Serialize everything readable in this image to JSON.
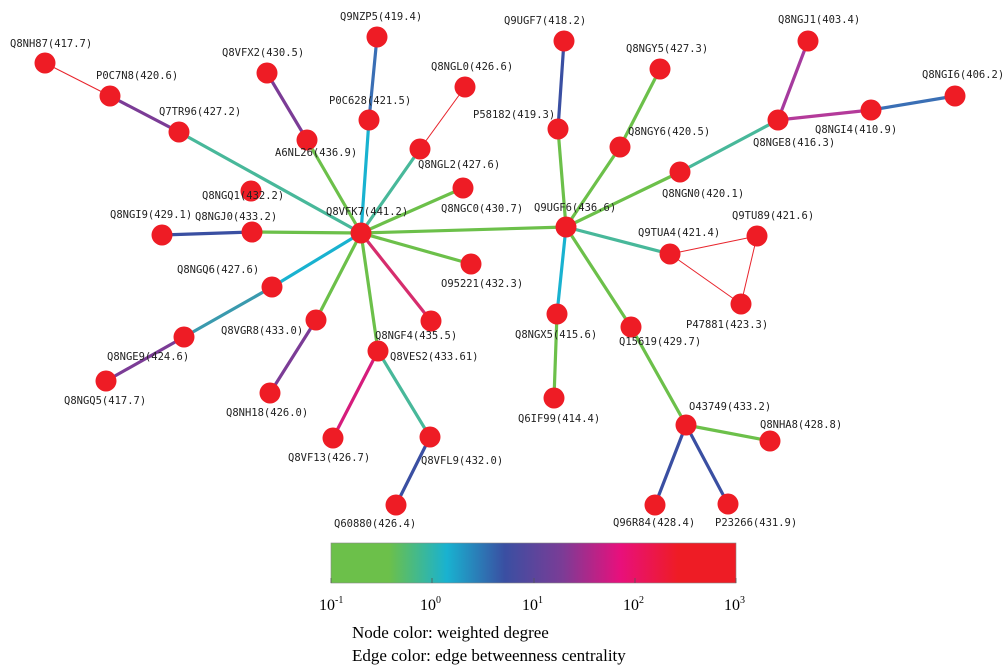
{
  "network": {
    "nodes": [
      {
        "id": "Q8VFK7",
        "label": "Q8VFK7(441.2)"
      },
      {
        "id": "Q9UGF6",
        "label": "Q9UGF6(436.6)"
      },
      {
        "id": "Q8NH87",
        "label": "Q8NH87(417.7)"
      },
      {
        "id": "P0C7N8",
        "label": "P0C7N8(420.6)"
      },
      {
        "id": "Q7TR96",
        "label": "Q7TR96(427.2)"
      },
      {
        "id": "Q8VFX2",
        "label": "Q8VFX2(430.5)"
      },
      {
        "id": "A6NL26",
        "label": "A6NL26(436.9)"
      },
      {
        "id": "Q9NZP5",
        "label": "Q9NZP5(419.4)"
      },
      {
        "id": "P0C628",
        "label": "P0C628(421.5)"
      },
      {
        "id": "Q8NGL0",
        "label": "Q8NGL0(426.6)"
      },
      {
        "id": "Q8NGL2",
        "label": "Q8NGL2(427.6)"
      },
      {
        "id": "Q8NGQ1",
        "label": "Q8NGQ1(432.2)"
      },
      {
        "id": "Q8NGC0",
        "label": "Q8NGC0(430.7)"
      },
      {
        "id": "Q8NGI9",
        "label": "Q8NGI9(429.1)"
      },
      {
        "id": "Q8NGJ0",
        "label": "Q8NGJ0(433.2)"
      },
      {
        "id": "O95221",
        "label": "O95221(432.3)"
      },
      {
        "id": "Q8NGQ6",
        "label": "Q8NGQ6(427.6)"
      },
      {
        "id": "Q8VGR8",
        "label": "Q8VGR8(433.0)"
      },
      {
        "id": "Q8NGF4",
        "label": "Q8NGF4(435.5)"
      },
      {
        "id": "Q8NGE9",
        "label": "Q8NGE9(424.6)"
      },
      {
        "id": "Q8VES2",
        "label": "Q8VES2(433.61)"
      },
      {
        "id": "Q8NGQ5",
        "label": "Q8NGQ5(417.7)"
      },
      {
        "id": "Q8NH18",
        "label": "Q8NH18(426.0)"
      },
      {
        "id": "Q8VF13",
        "label": "Q8VF13(426.7)"
      },
      {
        "id": "Q8VFL9",
        "label": "Q8VFL9(432.0)"
      },
      {
        "id": "Q60880",
        "label": "Q60880(426.4)"
      },
      {
        "id": "Q9UGF7",
        "label": "Q9UGF7(418.2)"
      },
      {
        "id": "P58182",
        "label": "P58182(419.3)"
      },
      {
        "id": "Q8NGY5",
        "label": "Q8NGY5(427.3)"
      },
      {
        "id": "Q8NGY6",
        "label": "Q8NGY6(420.5)"
      },
      {
        "id": "Q8NGJ1",
        "label": "Q8NGJ1(403.4)"
      },
      {
        "id": "Q8NGI6",
        "label": "Q8NGI6(406.2)"
      },
      {
        "id": "Q8NGI4",
        "label": "Q8NGI4(410.9)"
      },
      {
        "id": "Q8NGE8",
        "label": "Q8NGE8(416.3)"
      },
      {
        "id": "Q8NGN0",
        "label": "Q8NGN0(420.1)"
      },
      {
        "id": "Q9TUA4",
        "label": "Q9TUA4(421.4)"
      },
      {
        "id": "Q9TU89",
        "label": "Q9TU89(421.6)"
      },
      {
        "id": "P47881",
        "label": "P47881(423.3)"
      },
      {
        "id": "Q8NGX5",
        "label": "Q8NGX5(415.6)"
      },
      {
        "id": "Q15619",
        "label": "Q15619(429.7)"
      },
      {
        "id": "Q6IF99",
        "label": "Q6IF99(414.4)"
      },
      {
        "id": "O43749",
        "label": "O43749(433.2)"
      },
      {
        "id": "Q8NHA8",
        "label": "Q8NHA8(428.8)"
      },
      {
        "id": "Q96R84",
        "label": "Q96R84(428.4)"
      },
      {
        "id": "P23266",
        "label": "P23266(431.9)"
      }
    ],
    "node_color": "#ee1c25",
    "edges": [
      {
        "source": "Q8VFK7",
        "target": "Q9UGF6",
        "color": "#6cc04a"
      },
      {
        "source": "Q8NH87",
        "target": "P0C7N8",
        "color": "#e8242c"
      },
      {
        "source": "P0C7N8",
        "target": "Q7TR96",
        "color": "#7b3c96"
      },
      {
        "source": "Q7TR96",
        "target": "Q8VFK7",
        "color": "#48b89a"
      },
      {
        "source": "Q8VFX2",
        "target": "A6NL26",
        "color": "#7b3c96"
      },
      {
        "source": "A6NL26",
        "target": "Q8VFK7",
        "color": "#6cc04a"
      },
      {
        "source": "Q9NZP5",
        "target": "P0C628",
        "color": "#3a6fb5"
      },
      {
        "source": "P0C628",
        "target": "Q8VFK7",
        "color": "#19b2d0"
      },
      {
        "source": "Q8NGL0",
        "target": "Q8NGL2",
        "color": "#e8242c"
      },
      {
        "source": "Q8NGL2",
        "target": "Q8VFK7",
        "color": "#48b89a"
      },
      {
        "source": "Q8NGC0",
        "target": "Q8VFK7",
        "color": "#6cc04a"
      },
      {
        "source": "Q8NGI9",
        "target": "Q8NGJ0",
        "color": "#3a4fa2"
      },
      {
        "source": "Q8NGJ0",
        "target": "Q8VFK7",
        "color": "#6cc04a"
      },
      {
        "source": "O95221",
        "target": "Q8VFK7",
        "color": "#6cc04a"
      },
      {
        "source": "Q8NGQ6",
        "target": "Q8VFK7",
        "color": "#19b2d0"
      },
      {
        "source": "Q8NGE9",
        "target": "Q8NGQ6",
        "color": "#3a9aae"
      },
      {
        "source": "Q8NGQ5",
        "target": "Q8NGE9",
        "color": "#7b3c96"
      },
      {
        "source": "Q8VGR8",
        "target": "Q8VFK7",
        "color": "#6cc04a"
      },
      {
        "source": "Q8NH18",
        "target": "Q8VGR8",
        "color": "#7b3c96"
      },
      {
        "source": "Q8NGF4",
        "target": "Q8VFK7",
        "color": "#d62d6d"
      },
      {
        "source": "Q8VES2",
        "target": "Q8VFK7",
        "color": "#6cc04a"
      },
      {
        "source": "Q8VF13",
        "target": "Q8VES2",
        "color": "#d61c7c"
      },
      {
        "source": "Q8VFL9",
        "target": "Q8VES2",
        "color": "#48b89a"
      },
      {
        "source": "Q60880",
        "target": "Q8VFL9",
        "color": "#3a4fa2"
      },
      {
        "source": "Q9UGF7",
        "target": "P58182",
        "color": "#3a4fa2"
      },
      {
        "source": "P58182",
        "target": "Q9UGF6",
        "color": "#6cc04a"
      },
      {
        "source": "Q8NGY5",
        "target": "Q8NGY6",
        "color": "#6cc04a"
      },
      {
        "source": "Q8NGY6",
        "target": "Q9UGF6",
        "color": "#6cc04a"
      },
      {
        "source": "Q8NGJ1",
        "target": "Q8NGE8",
        "color": "#a63a9e"
      },
      {
        "source": "Q8NGI6",
        "target": "Q8NGI4",
        "color": "#3a6fb5"
      },
      {
        "source": "Q8NGI4",
        "target": "Q8NGE8",
        "color": "#b43a9a"
      },
      {
        "source": "Q8NGE8",
        "target": "Q8NGN0",
        "color": "#48b89a"
      },
      {
        "source": "Q8NGN0",
        "target": "Q9UGF6",
        "color": "#6cc04a"
      },
      {
        "source": "Q9TUA4",
        "target": "Q9UGF6",
        "color": "#48b89a"
      },
      {
        "source": "Q9TUA4",
        "target": "Q9TU89",
        "color": "#e8242c"
      },
      {
        "source": "Q9TUA4",
        "target": "P47881",
        "color": "#e8242c"
      },
      {
        "source": "Q9TU89",
        "target": "P47881",
        "color": "#e8242c"
      },
      {
        "source": "Q8NGX5",
        "target": "Q9UGF6",
        "color": "#19b2d0"
      },
      {
        "source": "Q6IF99",
        "target": "Q8NGX5",
        "color": "#6cc04a"
      },
      {
        "source": "Q15619",
        "target": "Q9UGF6",
        "color": "#6cc04a"
      },
      {
        "source": "O43749",
        "target": "Q15619",
        "color": "#6cc04a"
      },
      {
        "source": "Q8NHA8",
        "target": "O43749",
        "color": "#6cc04a"
      },
      {
        "source": "Q96R84",
        "target": "O43749",
        "color": "#3a4fa2"
      },
      {
        "source": "P23266",
        "target": "O43749",
        "color": "#3a4fa2"
      }
    ]
  },
  "colorbar": {
    "stops": [
      "#6cc04a",
      "#6cc04a",
      "#19b2d0",
      "#3a4fa2",
      "#7b3c96",
      "#e8107c",
      "#ee1c25",
      "#ee1c25"
    ],
    "tick_bases": [
      "10",
      "10",
      "10",
      "10",
      "10"
    ],
    "tick_exponents": [
      "-1",
      "0",
      "1",
      "2",
      "3"
    ]
  },
  "legend": {
    "node_caption": "Node color: weighted degree",
    "edge_caption": "Edge color: edge betweenness centrality"
  }
}
